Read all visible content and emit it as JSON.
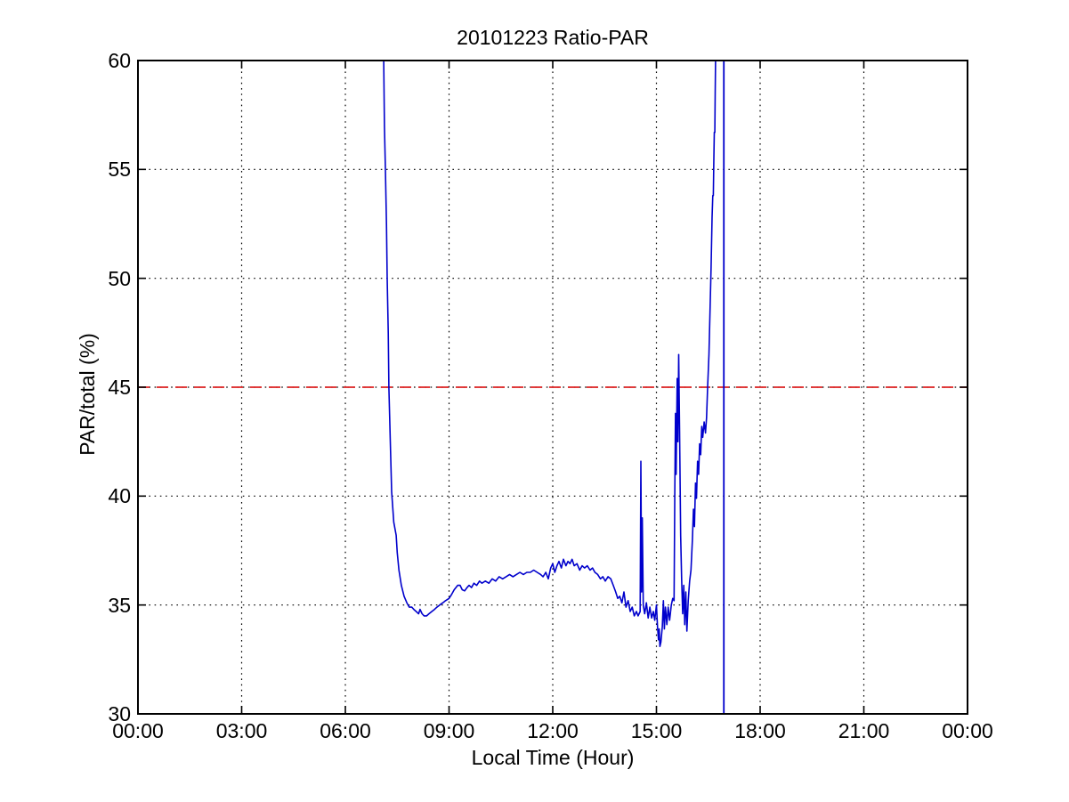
{
  "chart_data": {
    "type": "line",
    "title": "20101223 Ratio-PAR",
    "xlabel": "Local Time (Hour)",
    "ylabel": "PAR/total (%)",
    "x_axis": {
      "min_hours": 0,
      "max_hours": 24,
      "tick_step_hours": 3,
      "tick_hours": [
        0,
        3,
        6,
        9,
        12,
        15,
        18,
        21,
        24
      ],
      "tick_labels": [
        "00:00",
        "03:00",
        "06:00",
        "09:00",
        "12:00",
        "15:00",
        "18:00",
        "21:00",
        "00:00"
      ]
    },
    "y_axis": {
      "min": 30,
      "max": 60,
      "tick_step": 5,
      "tick_values": [
        30,
        35,
        40,
        45,
        50,
        55,
        60
      ],
      "tick_labels": [
        "30",
        "35",
        "40",
        "45",
        "50",
        "55",
        "60"
      ]
    },
    "grid": {
      "shown": true,
      "style": "dotted",
      "color": "#000000"
    },
    "reference_line": {
      "value": 45,
      "style": "dashed",
      "color": "#dd2222"
    },
    "vertical_line": {
      "time_hours": 16.95,
      "from": 30,
      "to": 60,
      "color": "#0000cc",
      "note": "off-scale data line just before 17:00 spanning full plot height"
    },
    "series": [
      {
        "name": "PAR/total ratio",
        "color": "#0000cc",
        "points": [
          [
            7.11,
            60
          ],
          [
            7.13,
            57
          ],
          [
            7.16,
            55
          ],
          [
            7.19,
            52.5
          ],
          [
            7.21,
            50
          ],
          [
            7.24,
            47.5
          ],
          [
            7.26,
            45
          ],
          [
            7.3,
            42.5
          ],
          [
            7.34,
            40.2
          ],
          [
            7.4,
            38.8
          ],
          [
            7.47,
            38.2
          ],
          [
            7.5,
            37.4
          ],
          [
            7.55,
            36.6
          ],
          [
            7.62,
            35.9
          ],
          [
            7.7,
            35.4
          ],
          [
            7.78,
            35.1
          ],
          [
            7.85,
            34.9
          ],
          [
            7.92,
            34.9
          ],
          [
            7.98,
            34.8
          ],
          [
            8.05,
            34.7
          ],
          [
            8.12,
            34.6
          ],
          [
            8.16,
            34.8
          ],
          [
            8.22,
            34.6
          ],
          [
            8.28,
            34.5
          ],
          [
            8.35,
            34.5
          ],
          [
            8.42,
            34.6
          ],
          [
            8.5,
            34.7
          ],
          [
            8.58,
            34.8
          ],
          [
            8.65,
            34.9
          ],
          [
            8.73,
            35.0
          ],
          [
            8.82,
            35.1
          ],
          [
            8.9,
            35.2
          ],
          [
            9.0,
            35.3
          ],
          [
            9.08,
            35.5
          ],
          [
            9.15,
            35.7
          ],
          [
            9.25,
            35.9
          ],
          [
            9.32,
            35.9
          ],
          [
            9.38,
            35.7
          ],
          [
            9.45,
            35.65
          ],
          [
            9.52,
            35.8
          ],
          [
            9.58,
            35.9
          ],
          [
            9.65,
            35.8
          ],
          [
            9.72,
            36.0
          ],
          [
            9.8,
            35.9
          ],
          [
            9.88,
            36.1
          ],
          [
            9.95,
            36.0
          ],
          [
            10.05,
            36.1
          ],
          [
            10.15,
            36.0
          ],
          [
            10.25,
            36.2
          ],
          [
            10.35,
            36.1
          ],
          [
            10.45,
            36.3
          ],
          [
            10.55,
            36.2
          ],
          [
            10.65,
            36.3
          ],
          [
            10.75,
            36.4
          ],
          [
            10.85,
            36.3
          ],
          [
            10.95,
            36.4
          ],
          [
            11.05,
            36.5
          ],
          [
            11.15,
            36.4
          ],
          [
            11.25,
            36.5
          ],
          [
            11.35,
            36.5
          ],
          [
            11.45,
            36.6
          ],
          [
            11.55,
            36.5
          ],
          [
            11.65,
            36.4
          ],
          [
            11.72,
            36.3
          ],
          [
            11.8,
            36.5
          ],
          [
            11.87,
            36.2
          ],
          [
            11.94,
            36.7
          ],
          [
            12.0,
            36.9
          ],
          [
            12.06,
            36.5
          ],
          [
            12.12,
            36.8
          ],
          [
            12.18,
            37.0
          ],
          [
            12.25,
            36.7
          ],
          [
            12.31,
            37.1
          ],
          [
            12.38,
            36.8
          ],
          [
            12.44,
            37.0
          ],
          [
            12.5,
            36.9
          ],
          [
            12.56,
            37.1
          ],
          [
            12.62,
            36.8
          ],
          [
            12.7,
            36.9
          ],
          [
            12.78,
            36.6
          ],
          [
            12.85,
            36.8
          ],
          [
            12.92,
            36.7
          ],
          [
            13.0,
            36.8
          ],
          [
            13.08,
            36.6
          ],
          [
            13.15,
            36.7
          ],
          [
            13.22,
            36.5
          ],
          [
            13.3,
            36.4
          ],
          [
            13.38,
            36.2
          ],
          [
            13.45,
            36.3
          ],
          [
            13.52,
            36.1
          ],
          [
            13.6,
            36.3
          ],
          [
            13.68,
            36.2
          ],
          [
            13.75,
            35.9
          ],
          [
            13.82,
            35.6
          ],
          [
            13.88,
            35.3
          ],
          [
            13.94,
            35.4
          ],
          [
            14.0,
            35.1
          ],
          [
            14.06,
            35.6
          ],
          [
            14.12,
            34.9
          ],
          [
            14.18,
            35.2
          ],
          [
            14.24,
            34.7
          ],
          [
            14.3,
            34.9
          ],
          [
            14.36,
            34.5
          ],
          [
            14.42,
            34.7
          ],
          [
            14.47,
            34.5
          ],
          [
            14.53,
            34.7
          ],
          [
            14.55,
            41.6
          ],
          [
            14.57,
            35.6
          ],
          [
            14.59,
            39.0
          ],
          [
            14.62,
            35.0
          ],
          [
            14.66,
            34.6
          ],
          [
            14.71,
            35.1
          ],
          [
            14.76,
            34.4
          ],
          [
            14.81,
            34.9
          ],
          [
            14.86,
            34.4
          ],
          [
            14.91,
            34.7
          ],
          [
            14.95,
            34.3
          ],
          [
            15.0,
            35.0
          ],
          [
            15.03,
            34.0
          ],
          [
            15.06,
            33.4
          ],
          [
            15.08,
            33.9
          ],
          [
            15.1,
            33.1
          ],
          [
            15.13,
            33.3
          ],
          [
            15.17,
            34.0
          ],
          [
            15.2,
            35.2
          ],
          [
            15.23,
            33.9
          ],
          [
            15.26,
            34.9
          ],
          [
            15.3,
            34.1
          ],
          [
            15.34,
            34.9
          ],
          [
            15.38,
            34.3
          ],
          [
            15.43,
            35.0
          ],
          [
            15.47,
            35.3
          ],
          [
            15.51,
            35.2
          ],
          [
            15.53,
            40.0
          ],
          [
            15.55,
            43.8
          ],
          [
            15.57,
            41.0
          ],
          [
            15.6,
            45.4
          ],
          [
            15.62,
            42.5
          ],
          [
            15.645,
            46.5
          ],
          [
            15.67,
            43.0
          ],
          [
            15.7,
            38.2
          ],
          [
            15.73,
            36.2
          ],
          [
            15.76,
            34.6
          ],
          [
            15.79,
            35.9
          ],
          [
            15.82,
            34.1
          ],
          [
            15.85,
            35.6
          ],
          [
            15.88,
            33.8
          ],
          [
            15.92,
            35.2
          ],
          [
            15.96,
            36.1
          ],
          [
            16.0,
            36.6
          ],
          [
            16.04,
            38.0
          ],
          [
            16.07,
            39.4
          ],
          [
            16.1,
            38.6
          ],
          [
            16.13,
            40.6
          ],
          [
            16.16,
            39.9
          ],
          [
            16.19,
            41.6
          ],
          [
            16.22,
            41.0
          ],
          [
            16.25,
            42.4
          ],
          [
            16.28,
            41.9
          ],
          [
            16.31,
            43.2
          ],
          [
            16.34,
            42.7
          ],
          [
            16.38,
            43.4
          ],
          [
            16.42,
            42.9
          ],
          [
            16.45,
            43.6
          ],
          [
            16.48,
            45.0
          ],
          [
            16.52,
            46.5
          ],
          [
            16.55,
            48.5
          ],
          [
            16.58,
            50.5
          ],
          [
            16.61,
            52.8
          ],
          [
            16.63,
            53.8
          ],
          [
            16.645,
            53.8
          ],
          [
            16.66,
            55.5
          ],
          [
            16.675,
            56.7
          ],
          [
            16.69,
            56.7
          ],
          [
            16.7,
            58.5
          ],
          [
            16.71,
            60
          ]
        ]
      }
    ]
  }
}
